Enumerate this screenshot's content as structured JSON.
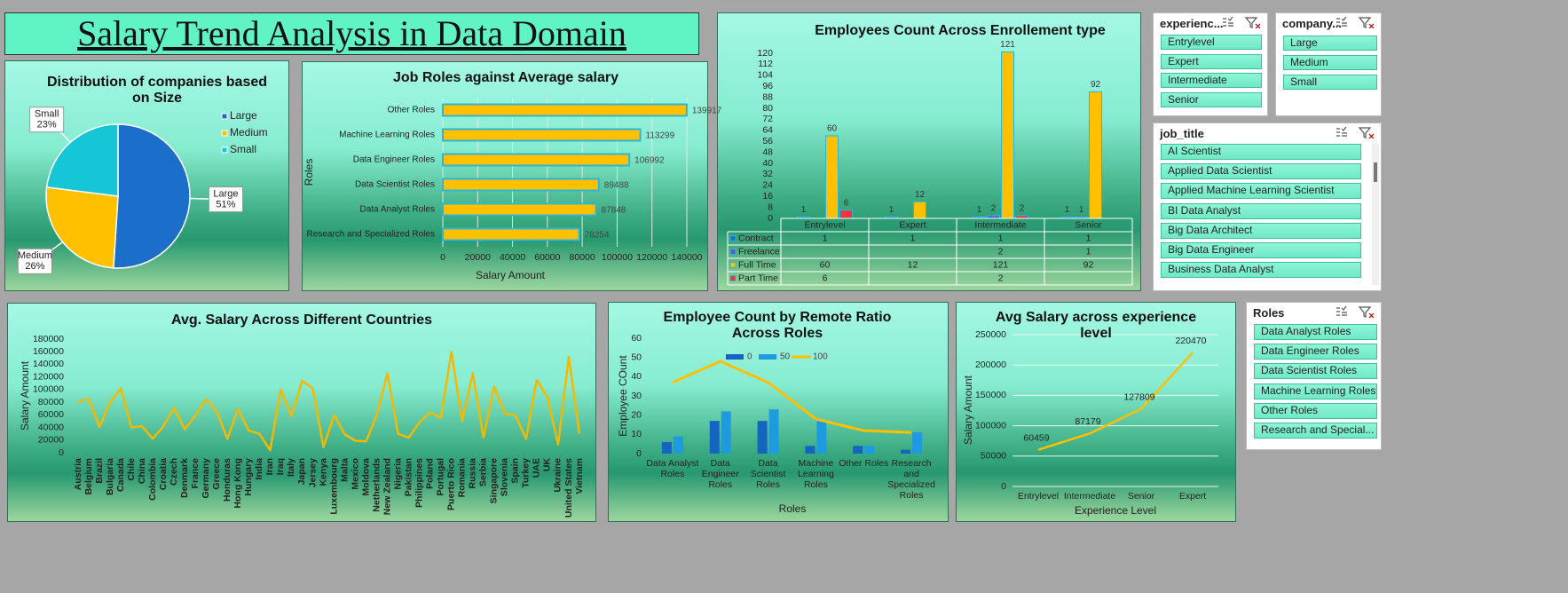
{
  "header": {
    "title": "Salary Trend Analysis in Data Domain"
  },
  "chart_data": [
    {
      "type": "pie",
      "title": "Distribution of companies based on Size",
      "categories": [
        "Large",
        "Medium",
        "Small"
      ],
      "values": [
        51,
        26,
        23
      ],
      "value_labels": [
        "51%",
        "26%",
        "23%"
      ],
      "colors": [
        "#1b6fca",
        "#ffc000",
        "#14c6d6"
      ],
      "legend": "right"
    },
    {
      "type": "bar",
      "orientation": "horizontal",
      "title": "Job Roles against Average salary",
      "categories": [
        "Research and Specialized Roles",
        "Data Analyst Roles",
        "Data Scientist Roles",
        "Data Engineer Roles",
        "Machine Learning Roles",
        "Other Roles"
      ],
      "values": [
        78254,
        87848,
        89488,
        106992,
        113299,
        139917
      ],
      "color": "#ffc000",
      "xlim": [
        0,
        140000
      ],
      "xticks": [
        0,
        20000,
        40000,
        60000,
        80000,
        100000,
        120000,
        140000
      ],
      "xlabel": "Salary Amount",
      "ylabel": "Roles",
      "grid": true,
      "data_labels": true
    },
    {
      "type": "bar",
      "title": "Employees Count Across Enrollement type",
      "categories": [
        "Entrylevel",
        "Expert",
        "Intermediate",
        "Senior"
      ],
      "series": [
        {
          "name": "Contract",
          "color": "#1f6fc5",
          "values": [
            1,
            1,
            1,
            1
          ]
        },
        {
          "name": "Freelance",
          "color": "#5a5fc8",
          "values": [
            null,
            null,
            2,
            1
          ]
        },
        {
          "name": "Full Time",
          "color": "#ffc000",
          "values": [
            60,
            12,
            121,
            92
          ]
        },
        {
          "name": "Part Time",
          "color": "#e8383d",
          "values": [
            6,
            null,
            2,
            null
          ]
        }
      ],
      "ylim": [
        0,
        120
      ],
      "yticks": [
        0,
        8,
        16,
        24,
        32,
        40,
        48,
        56,
        64,
        72,
        80,
        88,
        96,
        104,
        112,
        120
      ],
      "data_table": true,
      "data_labels": true
    },
    {
      "type": "line",
      "title": "Avg. Salary Across Different Countries",
      "categories": [
        "Austria",
        "Belgium",
        "Brazil",
        "Bulgaria",
        "Canada",
        "Chile",
        "China",
        "Colombia",
        "Croatia",
        "Czech",
        "Denmark",
        "France",
        "Germany",
        "Greece",
        "Honduras",
        "Hong Kong",
        "Hungary",
        "India",
        "Iran",
        "Iraq",
        "Italy",
        "Japan",
        "Jersey",
        "Kenya",
        "Luxembourg",
        "Malta",
        "Mexico",
        "Moldova",
        "Netherlands",
        "New Zealand",
        "Nigeria",
        "Pakistan",
        "Philippines",
        "Poland",
        "Portugal",
        "Puerto Rico",
        "Romania",
        "Russia",
        "Serbia",
        "Singapore",
        "Slovenia",
        "Spain",
        "Turkey",
        "UAE",
        "UK",
        "Ukraine",
        "United States",
        "Vietnam"
      ],
      "values": [
        81500,
        85000,
        41000,
        80000,
        102000,
        40000,
        42000,
        22000,
        42000,
        71000,
        37000,
        59000,
        85000,
        65000,
        22000,
        69000,
        35000,
        30000,
        4000,
        100000,
        58000,
        114000,
        102000,
        9000,
        60000,
        29000,
        19000,
        18000,
        60000,
        126000,
        30000,
        24000,
        48000,
        64000,
        55000,
        160000,
        50000,
        126000,
        24000,
        105000,
        62000,
        59000,
        22000,
        115000,
        88000,
        13000,
        152000,
        30000
      ],
      "color": "#f5b800",
      "ylabel": "Salary Amount",
      "ylim": [
        0,
        180000
      ],
      "yticks": [
        0,
        20000,
        40000,
        60000,
        80000,
        100000,
        120000,
        140000,
        160000,
        180000
      ]
    },
    {
      "type": "combo",
      "title": "Employee Count by Remote Ratio Across Roles",
      "categories": [
        "Data Analyst Roles",
        "Data Engineer Roles",
        "Data Scientist Roles",
        "Machine Learning Roles",
        "Other Roles",
        "Research and Specialized Roles"
      ],
      "series": [
        {
          "name": "0",
          "kind": "bar",
          "color": "#1565c0",
          "values": [
            6,
            17,
            17,
            4,
            4,
            2
          ]
        },
        {
          "name": "50",
          "kind": "bar",
          "color": "#1e9be0",
          "values": [
            9,
            22,
            23,
            17,
            4,
            11
          ]
        },
        {
          "name": "100",
          "kind": "line",
          "color": "#ffc000",
          "values": [
            37,
            48,
            37,
            18,
            12,
            11
          ]
        }
      ],
      "ylim": [
        0,
        60
      ],
      "yticks": [
        0,
        10,
        20,
        30,
        40,
        50,
        60
      ],
      "xlabel": "Roles",
      "ylabel": "Employee COunt",
      "legend": "top"
    },
    {
      "type": "line",
      "title": "Avg Salary across experience level",
      "categories": [
        "Entrylevel",
        "Intermediate",
        "Senior",
        "Expert"
      ],
      "values": [
        60459,
        87179,
        127809,
        220470
      ],
      "color": "#ffc000",
      "ylim": [
        0,
        250000
      ],
      "yticks": [
        0,
        50000,
        100000,
        150000,
        200000,
        250000
      ],
      "xlabel": "Experience Level",
      "ylabel": "Salary Amount",
      "grid": true,
      "data_labels": true
    }
  ],
  "slicers": [
    {
      "title": "experienc...",
      "items": [
        "Entrylevel",
        "Expert",
        "Intermediate",
        "Senior"
      ]
    },
    {
      "title": "company...",
      "items": [
        "Large",
        "Medium",
        "Small"
      ]
    },
    {
      "title": "job_title",
      "items": [
        "AI Scientist",
        "Applied Data Scientist",
        "Applied Machine Learning Scientist",
        "BI Data Analyst",
        "Big Data Architect",
        "Big Data Engineer",
        "Business Data Analyst"
      ]
    },
    {
      "title": "Roles",
      "items": [
        "Data Analyst Roles",
        "Data Engineer Roles",
        "Data Scientist Roles",
        "Machine Learning Roles",
        "Other Roles",
        "Research and Special..."
      ]
    }
  ]
}
